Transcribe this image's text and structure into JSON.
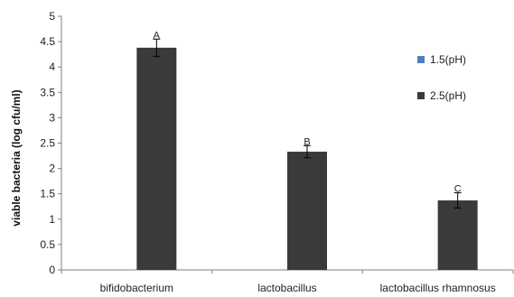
{
  "chart_data": {
    "type": "bar",
    "ylabel": "viable bacteria  (log cfu/ml)",
    "xlabel": "",
    "ylim": [
      0,
      5
    ],
    "yticks": [
      "0",
      "0.5",
      "1",
      "1.5",
      "2",
      "2.5",
      "3",
      "3.5",
      "4",
      "4.5",
      "5"
    ],
    "grid": false,
    "legend_position": "right",
    "categories": [
      "bifidobacterium",
      "lactobacillus",
      "lactobacillus rhamnosus"
    ],
    "series": [
      {
        "name": "1.5(pH)",
        "color": "#4f81bd",
        "values": [
          0,
          0,
          0
        ]
      },
      {
        "name": "2.5(pH)",
        "color": "#3a3a3a",
        "values": [
          4.38,
          2.33,
          1.37
        ],
        "errors": [
          0.17,
          0.12,
          0.15
        ],
        "sig_labels": [
          "A",
          "B",
          "C"
        ]
      }
    ]
  }
}
